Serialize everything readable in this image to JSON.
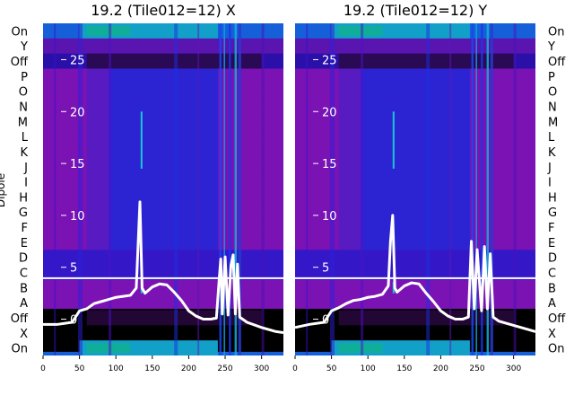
{
  "figure": {
    "ylabel": "Dipole"
  },
  "chart_data": [
    {
      "type": "heatmap",
      "title": "19.2 (Tile012=12) X",
      "xlabel": "",
      "ylabel": "Dipole",
      "xlim": [
        0,
        330
      ],
      "x_ticks": [
        0,
        50,
        100,
        150,
        200,
        250,
        300
      ],
      "categories": [
        "On",
        "Y",
        "Off",
        "P",
        "O",
        "N",
        "M",
        "L",
        "K",
        "J",
        "I",
        "H",
        "G",
        "F",
        "E",
        "D",
        "C",
        "B",
        "A",
        "Off",
        "X",
        "On"
      ],
      "overlay_ylim": [
        -3.5,
        28.5
      ],
      "overlay_ticks": [
        0,
        5,
        10,
        15,
        20,
        25
      ],
      "overlay_series": [
        {
          "x": [
            0,
            20,
            40,
            50,
            60,
            70,
            80,
            90,
            100,
            110,
            120,
            128,
            131,
            133,
            136,
            140,
            150,
            160,
            170,
            180,
            190,
            200,
            210,
            220,
            230,
            238,
            242,
            244,
            246,
            250,
            254,
            258,
            261,
            264,
            267,
            270,
            280,
            300,
            320,
            330
          ],
          "y": [
            -0.5,
            -0.5,
            -0.3,
            0.8,
            1.0,
            1.5,
            1.7,
            1.9,
            2.1,
            2.2,
            2.3,
            3.0,
            8.0,
            11.3,
            3.0,
            2.5,
            3.1,
            3.4,
            3.3,
            2.6,
            1.8,
            0.8,
            0.3,
            0.0,
            0.0,
            0.1,
            4.0,
            5.8,
            0.5,
            6.0,
            0.4,
            5.2,
            6.2,
            0.5,
            5.3,
            0.2,
            -0.3,
            -0.8,
            -1.2,
            -1.3
          ]
        }
      ]
    },
    {
      "type": "heatmap",
      "title": "19.2 (Tile012=12) Y",
      "xlabel": "",
      "ylabel": "",
      "xlim": [
        0,
        330
      ],
      "x_ticks": [
        0,
        50,
        100,
        150,
        200,
        250,
        300
      ],
      "categories": [
        "On",
        "Y",
        "Off",
        "P",
        "O",
        "N",
        "M",
        "L",
        "K",
        "J",
        "I",
        "H",
        "G",
        "F",
        "E",
        "D",
        "C",
        "B",
        "A",
        "Off",
        "X",
        "On"
      ],
      "overlay_ylim": [
        -3.5,
        28.5
      ],
      "overlay_ticks": [
        0,
        5,
        10,
        15,
        20,
        25
      ],
      "overlay_series": [
        {
          "x": [
            0,
            20,
            40,
            50,
            60,
            70,
            80,
            90,
            100,
            110,
            120,
            128,
            131,
            134,
            137,
            140,
            150,
            160,
            170,
            180,
            190,
            200,
            210,
            220,
            230,
            238,
            242,
            246,
            250,
            256,
            260,
            264,
            268,
            272,
            280,
            300,
            320,
            330
          ],
          "y": [
            -0.8,
            -0.5,
            -0.3,
            0.8,
            1.1,
            1.5,
            1.8,
            1.9,
            2.1,
            2.2,
            2.4,
            3.2,
            7.5,
            10.0,
            3.0,
            2.6,
            3.2,
            3.5,
            3.4,
            2.5,
            1.7,
            0.8,
            0.3,
            0.0,
            0.0,
            0.2,
            7.5,
            1.0,
            6.7,
            0.8,
            7.0,
            1.0,
            6.3,
            0.2,
            -0.2,
            -0.6,
            -1.0,
            -1.2
          ]
        }
      ]
    }
  ]
}
